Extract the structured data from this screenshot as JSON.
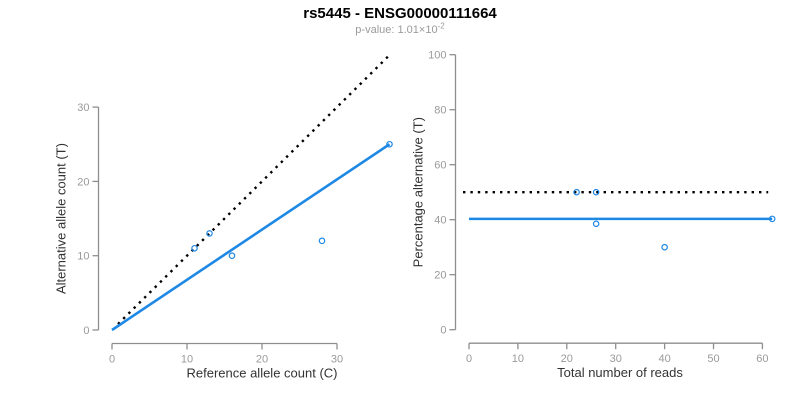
{
  "header": {
    "title": "rs5445 - ENSG00000111664",
    "pvalue_base": "p-value: 1.01×10",
    "pvalue_exponent": "-2"
  },
  "colors": {
    "background": "#ffffff",
    "title": "#000000",
    "subtitle": "#9a9a9a",
    "axis_line": "#8e8e8e",
    "tick_label": "#9a9a9a",
    "axis_title": "#333333",
    "accent_blue": "#1E88E5",
    "dotted_black": "#000000"
  },
  "chart_data": [
    {
      "type": "scatter",
      "name": "allele-counts-panel",
      "title": "",
      "xlabel": "Reference allele count (C)",
      "ylabel": "Alternative allele count (T)",
      "xlim": [
        0,
        37
      ],
      "ylim": [
        0,
        37
      ],
      "xticks": [
        0,
        10,
        20,
        30
      ],
      "yticks": [
        0,
        10,
        20,
        30
      ],
      "grid": false,
      "legend": "none",
      "points": [
        [
          11,
          11
        ],
        [
          13,
          13
        ],
        [
          16,
          10
        ],
        [
          28,
          12
        ],
        [
          37,
          25
        ]
      ],
      "lines": [
        {
          "name": "identity",
          "style": "dotted",
          "color": "#000000",
          "from": [
            0.8,
            0.8
          ],
          "to": [
            36.8,
            36.8
          ]
        },
        {
          "name": "fit",
          "style": "solid",
          "color": "#1E88E5",
          "from": [
            0,
            0
          ],
          "to": [
            37,
            25
          ]
        }
      ]
    },
    {
      "type": "scatter",
      "name": "percentage-panel",
      "title": "",
      "xlabel": "Total number of reads",
      "ylabel": "Percentage alternative (T)",
      "xlim": [
        0,
        62
      ],
      "ylim": [
        0,
        100
      ],
      "xticks": [
        0,
        10,
        20,
        30,
        40,
        50,
        60
      ],
      "yticks": [
        0,
        20,
        40,
        60,
        80,
        100
      ],
      "grid": false,
      "legend": "none",
      "points": [
        [
          22,
          50
        ],
        [
          26,
          50
        ],
        [
          26,
          38.5
        ],
        [
          40,
          30
        ],
        [
          62,
          40.3
        ]
      ],
      "lines": [
        {
          "name": "expected-50-percent",
          "style": "dotted",
          "color": "#000000",
          "y": 50
        },
        {
          "name": "mean-percentage",
          "style": "solid",
          "color": "#1E88E5",
          "y": 40.3
        }
      ]
    }
  ]
}
